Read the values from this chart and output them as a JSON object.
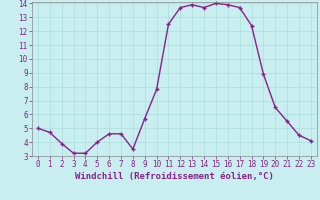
{
  "x": [
    0,
    1,
    2,
    3,
    4,
    5,
    6,
    7,
    8,
    9,
    10,
    11,
    12,
    13,
    14,
    15,
    16,
    17,
    18,
    19,
    20,
    21,
    22,
    23
  ],
  "y": [
    5.0,
    4.7,
    3.9,
    3.2,
    3.2,
    4.0,
    4.6,
    4.6,
    3.5,
    5.7,
    7.8,
    12.5,
    13.7,
    13.9,
    13.7,
    14.0,
    13.9,
    13.7,
    12.4,
    8.9,
    6.5,
    5.5,
    4.5,
    4.1
  ],
  "line_color": "#882288",
  "marker": "+",
  "marker_size": 3,
  "marker_linewidth": 1.0,
  "background_color": "#c8eef0",
  "grid_color": "#aadddd",
  "xlabel": "Windchill (Refroidissement éolien,°C)",
  "xlabel_color": "#882288",
  "tick_color": "#882288",
  "spine_color": "#888888",
  "ylim": [
    3,
    14
  ],
  "xlim": [
    -0.5,
    23.5
  ],
  "yticks": [
    3,
    4,
    5,
    6,
    7,
    8,
    9,
    10,
    11,
    12,
    13,
    14
  ],
  "xticks": [
    0,
    1,
    2,
    3,
    4,
    5,
    6,
    7,
    8,
    9,
    10,
    11,
    12,
    13,
    14,
    15,
    16,
    17,
    18,
    19,
    20,
    21,
    22,
    23
  ],
  "tick_fontsize": 5.5,
  "xlabel_fontsize": 6.5,
  "linewidth": 1.0
}
